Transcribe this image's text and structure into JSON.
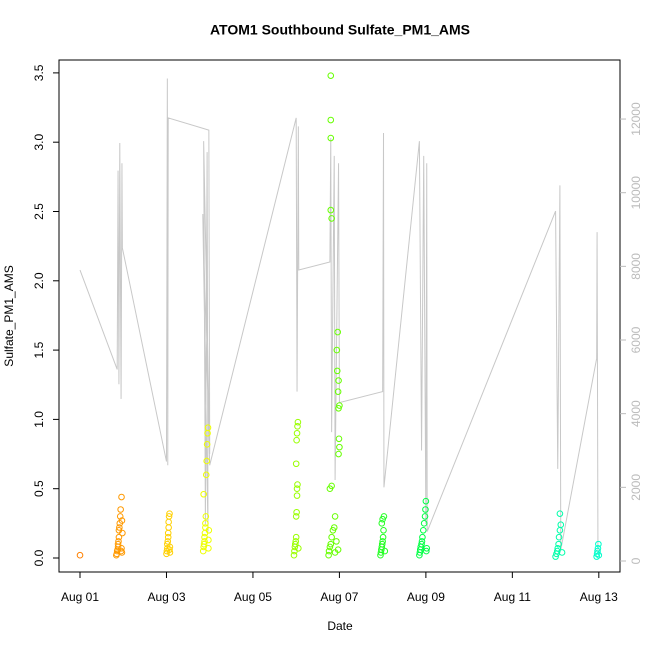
{
  "chart_data": {
    "type": "scatter",
    "title": "ATOM1 Southbound Sulfate_PM1_AMS",
    "xlabel": "Date",
    "ylabel": "Sulfate_PM1_AMS",
    "xlim": [
      0.514,
      13.49
    ],
    "xticks": [
      {
        "value": 1,
        "label": "Aug 01"
      },
      {
        "value": 3,
        "label": "Aug 03"
      },
      {
        "value": 5,
        "label": "Aug 05"
      },
      {
        "value": 7,
        "label": "Aug 07"
      },
      {
        "value": 9,
        "label": "Aug 09"
      },
      {
        "value": 11,
        "label": "Aug 11"
      },
      {
        "value": 13,
        "label": "Aug 13"
      }
    ],
    "ylim": [
      -0.101,
      3.593
    ],
    "yticks": [
      {
        "value": 0,
        "label": "0.0"
      },
      0.5,
      {
        "value": 1,
        "label": "1.0"
      },
      1.5,
      {
        "value": 2,
        "label": "2.0"
      },
      2.5,
      {
        "value": 3,
        "label": "3.0"
      },
      3.5
    ],
    "y2lim": [
      -299,
      13603
    ],
    "y2ticks": [
      0,
      2000,
      4000,
      6000,
      8000,
      10000,
      12000
    ],
    "y2tick_color": "#bbbbbb",
    "grid": false,
    "series": [
      {
        "type": "line",
        "axis": "y2",
        "color": "#c8c8c8",
        "x": [
          1.0,
          1.86,
          1.88,
          1.9,
          1.92,
          1.95,
          1.97,
          1.98,
          3.0,
          3.02,
          3.03,
          3.04,
          3.98,
          4.0,
          3.86,
          3.9,
          3.94,
          3.96,
          3.84,
          4.0,
          6.0,
          6.02,
          6.05,
          6.06,
          6.78,
          6.8,
          6.82,
          6.88,
          6.9,
          6.98,
          7.0,
          8.0,
          8.02,
          8.03,
          8.85,
          8.9,
          8.95,
          9.0,
          9.02,
          9.03,
          12.0,
          12.05,
          12.1,
          12.12,
          12.95,
          12.96,
          12.98
        ],
        "values": [
          7900,
          5200,
          10600,
          4800,
          11350,
          4400,
          10800,
          8500,
          2700,
          13100,
          2600,
          12030,
          11700,
          2900,
          11400,
          1000,
          11100,
          800,
          9420,
          2600,
          12030,
          4600,
          11800,
          7900,
          8120,
          11480,
          3500,
          11000,
          2200,
          10800,
          4300,
          4600,
          11620,
          2000,
          11400,
          3000,
          11000,
          1000,
          10800,
          800,
          9500,
          2500,
          10200,
          300,
          5500,
          8930,
          200
        ]
      },
      {
        "color": "#ff8000",
        "x": [
          1.0
        ],
        "values": [
          0.02
        ]
      },
      {
        "color": "#ff9900",
        "x": [
          1.84,
          1.85,
          1.86,
          1.87,
          1.88,
          1.88,
          1.89,
          1.9,
          1.9,
          1.91,
          1.92,
          1.93,
          1.94,
          1.96,
          1.95,
          1.96,
          1.97,
          1.97,
          1.98
        ],
        "values": [
          0.02,
          0.03,
          0.05,
          0.06,
          0.08,
          0.1,
          0.12,
          0.15,
          0.2,
          0.22,
          0.25,
          0.3,
          0.35,
          0.44,
          0.05,
          0.07,
          0.04,
          0.27,
          0.18
        ]
      },
      {
        "color": "#ffd000",
        "x": [
          3.0,
          3.01,
          3.02,
          3.02,
          3.03,
          3.04,
          3.04,
          3.05,
          3.05,
          3.06,
          3.07,
          3.07,
          3.08,
          3.08
        ],
        "values": [
          0.03,
          0.05,
          0.07,
          0.1,
          0.12,
          0.15,
          0.18,
          0.22,
          0.26,
          0.3,
          0.32,
          0.06,
          0.08,
          0.04
        ]
      },
      {
        "color": "#eeff00",
        "x": [
          3.85,
          3.86,
          3.87,
          3.88,
          3.88,
          3.89,
          3.9,
          3.9,
          3.91,
          3.86,
          3.92,
          3.93,
          3.94,
          3.95,
          3.96,
          3.97,
          3.97,
          3.98
        ],
        "values": [
          0.05,
          0.08,
          0.1,
          0.12,
          0.15,
          0.18,
          0.22,
          0.25,
          0.3,
          0.46,
          0.6,
          0.7,
          0.82,
          0.9,
          0.94,
          0.07,
          0.13,
          0.2
        ]
      },
      {
        "color": "#99ff00",
        "x": [
          5.95,
          5.96,
          5.97,
          5.98,
          5.99,
          6.0,
          6.0,
          6.01,
          6.02,
          6.02,
          6.03,
          6.0,
          6.01,
          6.02,
          6.03,
          6.04,
          6.05
        ],
        "values": [
          0.02,
          0.05,
          0.08,
          0.1,
          0.12,
          0.15,
          0.3,
          0.33,
          0.45,
          0.5,
          0.53,
          0.68,
          0.85,
          0.9,
          0.95,
          0.98,
          0.07
        ]
      },
      {
        "color": "#66ff00",
        "x": [
          6.75,
          6.76,
          6.78,
          6.8,
          6.82,
          6.85,
          6.88,
          6.9,
          6.78,
          6.82,
          6.98,
          7.0,
          6.99,
          6.98,
          7.0,
          6.97,
          6.98,
          6.95,
          6.94,
          6.96,
          6.82,
          6.8,
          6.8,
          6.8,
          6.8,
          6.9,
          6.93,
          6.97
        ],
        "values": [
          0.02,
          0.05,
          0.08,
          0.1,
          0.15,
          0.2,
          0.22,
          0.3,
          0.5,
          0.52,
          0.75,
          0.8,
          0.86,
          1.08,
          1.1,
          1.2,
          1.28,
          1.35,
          1.5,
          1.63,
          2.45,
          2.51,
          3.03,
          3.16,
          3.48,
          0.04,
          0.12,
          0.06
        ]
      },
      {
        "color": "#22ff22",
        "x": [
          7.95,
          7.96,
          7.97,
          7.98,
          7.99,
          8.0,
          8.01,
          8.02,
          7.98,
          8.0,
          8.03,
          8.05
        ],
        "values": [
          0.02,
          0.04,
          0.06,
          0.08,
          0.1,
          0.12,
          0.15,
          0.2,
          0.25,
          0.28,
          0.3,
          0.05
        ]
      },
      {
        "color": "#00ff44",
        "x": [
          8.85,
          8.86,
          8.87,
          8.88,
          8.9,
          8.91,
          8.92,
          8.94,
          8.96,
          8.98,
          8.99,
          9.0,
          9.01,
          9.02
        ],
        "values": [
          0.02,
          0.04,
          0.06,
          0.08,
          0.1,
          0.12,
          0.15,
          0.2,
          0.25,
          0.3,
          0.35,
          0.41,
          0.05,
          0.07
        ]
      },
      {
        "color": "#00ffaa",
        "x": [
          12.0,
          12.02,
          12.04,
          12.05,
          12.07,
          12.08,
          12.1,
          12.12,
          12.1,
          12.15
        ],
        "values": [
          0.01,
          0.03,
          0.05,
          0.07,
          0.1,
          0.15,
          0.2,
          0.24,
          0.32,
          0.04
        ]
      },
      {
        "color": "#00ffcc",
        "x": [
          12.95,
          12.96,
          12.97,
          12.98,
          12.99,
          13.0
        ],
        "values": [
          0.01,
          0.03,
          0.05,
          0.07,
          0.1,
          0.02
        ]
      }
    ]
  }
}
